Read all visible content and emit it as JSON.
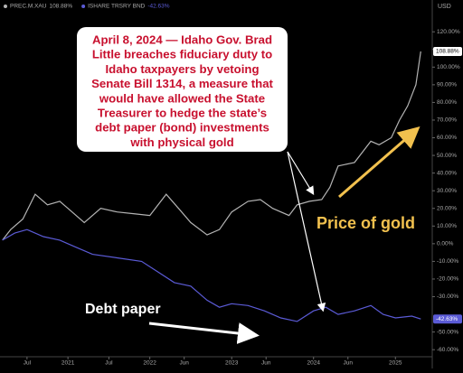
{
  "chart_data": {
    "type": "line",
    "y_unit": "USD",
    "xlim": [
      2020.17,
      2025.45
    ],
    "xticks": [
      {
        "value": 2020.5,
        "label": "Jul"
      },
      {
        "value": 2021,
        "label": "2021"
      },
      {
        "value": 2021.5,
        "label": "Jul"
      },
      {
        "value": 2022,
        "label": "2022"
      },
      {
        "value": 2022.42,
        "label": "Jun"
      },
      {
        "value": 2023,
        "label": "2023"
      },
      {
        "value": 2023.42,
        "label": "Jun"
      },
      {
        "value": 2024,
        "label": "2024"
      },
      {
        "value": 2024.42,
        "label": "Jun"
      },
      {
        "value": 2025,
        "label": "2025"
      }
    ],
    "ylim": [
      -64,
      138
    ],
    "yticks": [
      {
        "value": 120,
        "label": "120.00%"
      },
      {
        "value": 110,
        "label": "110.00%"
      },
      {
        "value": 100,
        "label": "100.00%"
      },
      {
        "value": 90,
        "label": "90.00%"
      },
      {
        "value": 80,
        "label": "80.00%"
      },
      {
        "value": 70,
        "label": "70.00%"
      },
      {
        "value": 60,
        "label": "60.00%"
      },
      {
        "value": 50,
        "label": "50.00%"
      },
      {
        "value": 40,
        "label": "40.00%"
      },
      {
        "value": 30,
        "label": "30.00%"
      },
      {
        "value": 20,
        "label": "20.00%"
      },
      {
        "value": 10,
        "label": "10.00%"
      },
      {
        "value": 0,
        "label": "0.00%"
      },
      {
        "value": -10,
        "label": "-10.00%"
      },
      {
        "value": -20,
        "label": "-20.00%"
      },
      {
        "value": -30,
        "label": "-30.00%"
      },
      {
        "value": -50,
        "label": "-50.00%"
      },
      {
        "value": -60,
        "label": "-60.00%"
      }
    ],
    "series": [
      {
        "name": "PREC.M.XAU",
        "color": "#b4b4b4",
        "x": [
          2020.2,
          2020.3,
          2020.45,
          2020.6,
          2020.75,
          2020.9,
          2021.0,
          2021.2,
          2021.4,
          2021.6,
          2021.8,
          2022.0,
          2022.2,
          2022.35,
          2022.5,
          2022.7,
          2022.85,
          2023.0,
          2023.2,
          2023.35,
          2023.5,
          2023.7,
          2023.8,
          2023.95,
          2024.1,
          2024.2,
          2024.3,
          2024.5,
          2024.7,
          2024.8,
          2024.95,
          2025.05,
          2025.15,
          2025.25,
          2025.31
        ],
        "values": [
          2,
          8,
          14,
          28,
          22,
          24,
          20,
          12,
          20,
          18,
          17,
          16,
          28,
          20,
          12,
          5,
          8,
          18,
          24,
          25,
          20,
          16,
          22,
          24,
          25,
          32,
          44,
          46,
          58,
          56,
          60,
          70,
          78,
          90,
          108.88
        ],
        "value_labels": [
          null,
          null,
          null,
          null,
          null,
          null,
          null,
          null,
          null,
          null,
          null,
          null,
          null,
          null,
          null,
          null,
          null,
          null,
          null,
          null,
          null,
          null,
          null,
          null,
          null,
          null,
          null,
          null,
          null,
          null,
          null,
          null,
          null,
          null,
          "108.88%"
        ]
      },
      {
        "name": "ISHARE TRSRY BND",
        "color": "#5b5bd6",
        "x": [
          2020.2,
          2020.35,
          2020.5,
          2020.7,
          2020.9,
          2021.1,
          2021.3,
          2021.6,
          2021.9,
          2022.1,
          2022.3,
          2022.5,
          2022.7,
          2022.85,
          2023.0,
          2023.2,
          2023.4,
          2023.6,
          2023.8,
          2024.0,
          2024.15,
          2024.3,
          2024.5,
          2024.7,
          2024.85,
          2025.0,
          2025.2,
          2025.31
        ],
        "values": [
          2,
          6,
          8,
          4,
          2,
          -2,
          -6,
          -8,
          -10,
          -16,
          -22,
          -24,
          -32,
          -36,
          -34,
          -35,
          -38,
          -42,
          -44,
          -38,
          -36,
          -40,
          -38,
          -35,
          -40,
          -42,
          -41,
          -42.63
        ],
        "value_labels": [
          null,
          null,
          null,
          null,
          null,
          null,
          null,
          null,
          null,
          null,
          null,
          null,
          null,
          null,
          null,
          null,
          null,
          null,
          null,
          null,
          null,
          null,
          null,
          null,
          null,
          null,
          null,
          "-42.63%"
        ]
      }
    ],
    "annotations": {
      "callout": [
        "April 8, 2024 — Idaho Gov. Brad",
        "Little breaches fiduciary duty to",
        "Idaho taxpayers by vetoing",
        "Senate Bill 1314, a measure that",
        "would have allowed the State",
        "Treasurer to hedge the state’s",
        "debt paper (bond) investments",
        "with physical gold"
      ],
      "gold_label": "Price of gold",
      "debt_label": "Debt paper"
    }
  }
}
